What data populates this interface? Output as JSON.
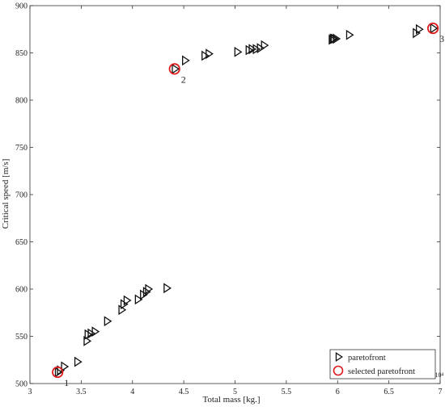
{
  "chart_data": {
    "type": "scatter",
    "xlabel": "Total mass [kg.]",
    "ylabel": "Critical speed [m/s]",
    "x_multiplier_label": "×10⁴",
    "xlim": [
      3,
      7
    ],
    "ylim": [
      500,
      900
    ],
    "x_ticks": [
      "3",
      "3.5",
      "4",
      "4.5",
      "5",
      "5.5",
      "6",
      "6.5",
      "7"
    ],
    "y_ticks": [
      "500",
      "550",
      "600",
      "650",
      "700",
      "750",
      "800",
      "850",
      "900"
    ],
    "grid": false,
    "legend_position": "bottom-right",
    "colors": {
      "paretofront": "#111111",
      "selected": "#e0191b",
      "axis": "#333333"
    },
    "series": [
      {
        "name": "paretofront",
        "marker": "triangle-right",
        "points": [
          [
            3.27,
            512
          ],
          [
            3.29,
            514
          ],
          [
            3.33,
            518
          ],
          [
            3.46,
            523
          ],
          [
            3.55,
            545
          ],
          [
            3.56,
            552
          ],
          [
            3.59,
            553
          ],
          [
            3.63,
            555
          ],
          [
            3.75,
            566
          ],
          [
            3.89,
            578
          ],
          [
            3.91,
            584
          ],
          [
            3.94,
            588
          ],
          [
            4.05,
            589
          ],
          [
            4.1,
            594
          ],
          [
            4.13,
            597
          ],
          [
            4.15,
            600
          ],
          [
            4.33,
            601
          ],
          [
            4.41,
            833
          ],
          [
            4.51,
            842
          ],
          [
            4.7,
            847
          ],
          [
            4.74,
            849
          ],
          [
            5.02,
            851
          ],
          [
            5.13,
            853
          ],
          [
            5.16,
            854
          ],
          [
            5.2,
            854
          ],
          [
            5.24,
            855
          ],
          [
            5.28,
            858
          ],
          [
            5.94,
            864
          ],
          [
            5.95,
            865
          ],
          [
            5.96,
            865
          ],
          [
            5.98,
            865
          ],
          [
            6.11,
            869
          ],
          [
            6.76,
            871
          ],
          [
            6.79,
            875
          ],
          [
            6.93,
            876
          ]
        ]
      },
      {
        "name": "selected paretofront",
        "marker": "circle",
        "points": [
          [
            3.27,
            512
          ],
          [
            4.41,
            833
          ],
          [
            6.93,
            876
          ]
        ],
        "labels": [
          "1",
          "2",
          "3"
        ]
      }
    ]
  }
}
